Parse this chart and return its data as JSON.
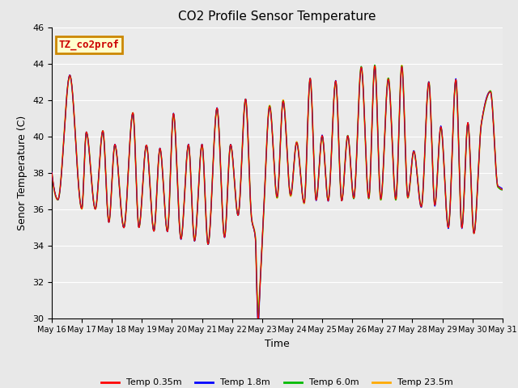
{
  "title": "CO2 Profile Sensor Temperature",
  "ylabel": "Senor Temperature (C)",
  "xlabel": "Time",
  "ylim": [
    30,
    46
  ],
  "xlim": [
    0,
    15
  ],
  "annotation_text": "TZ_co2prof",
  "annotation_color": "#cc0000",
  "annotation_bg": "#ffffcc",
  "annotation_border": "#cc8800",
  "fig_bg_color": "#e8e8e8",
  "plot_bg": "#ebebeb",
  "legend_entries": [
    "Temp 0.35m",
    "Temp 1.8m",
    "Temp 6.0m",
    "Temp 23.5m"
  ],
  "legend_colors": [
    "#ff0000",
    "#0000ff",
    "#00bb00",
    "#ffaa00"
  ],
  "x_tick_labels": [
    "May 16",
    "May 17",
    "May 18",
    "May 19",
    "May 20",
    "May 21",
    "May 22",
    "May 23",
    "May 24",
    "May 25",
    "May 26",
    "May 27",
    "May 28",
    "May 29",
    "May 30",
    "May 31"
  ],
  "x_tick_positions": [
    0,
    1,
    2,
    3,
    4,
    5,
    6,
    7,
    8,
    9,
    10,
    11,
    12,
    13,
    14,
    15
  ],
  "yticks": [
    30,
    32,
    34,
    36,
    38,
    40,
    42,
    44,
    46
  ],
  "grid_color": "#ffffff",
  "line_width": 1.0,
  "title_fontsize": 11,
  "label_fontsize": 9,
  "tick_fontsize": 7,
  "legend_fontsize": 8
}
